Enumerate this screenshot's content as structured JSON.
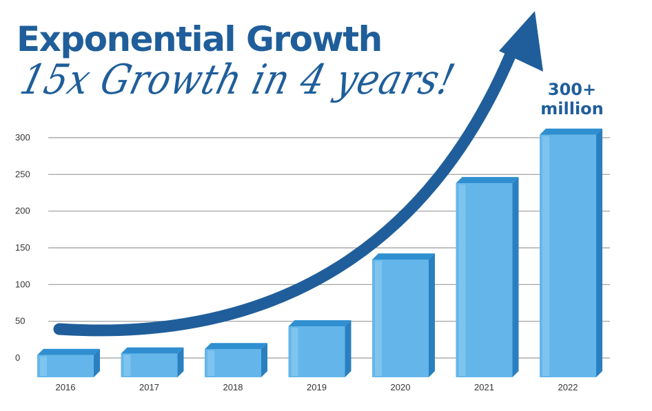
{
  "header": {
    "title": "Exponential Growth",
    "subtitle": "15x Growth in 4 years!"
  },
  "callout": {
    "line1": "300+",
    "line2": "million"
  },
  "colors": {
    "accent": "#1f5e9a",
    "bar_front": "#64b6ea",
    "bar_top": "#2f8fd0",
    "bar_side": "#2a7fc0",
    "grid": "#9a9a9a",
    "tick_text": "#333333"
  },
  "chart_data": {
    "type": "bar",
    "title": "Exponential Growth",
    "subtitle": "15x Growth in 4 years!",
    "categories": [
      "2016",
      "2017",
      "2018",
      "2019",
      "2020",
      "2021",
      "2022"
    ],
    "values": [
      4,
      6,
      12,
      43,
      134,
      238,
      304
    ],
    "yticks": [
      0,
      50,
      100,
      150,
      200,
      250,
      300
    ],
    "ylim": [
      0,
      300
    ],
    "xlabel": "",
    "ylabel": "",
    "grid": true,
    "legend": "none",
    "annotation": "300+ million"
  }
}
